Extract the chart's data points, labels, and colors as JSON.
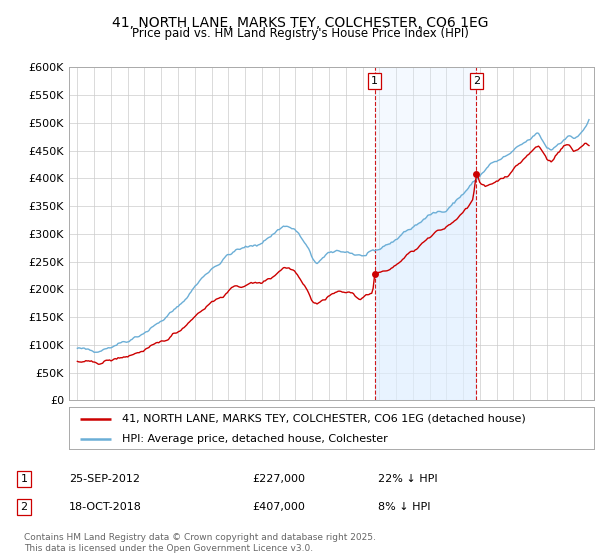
{
  "title": "41, NORTH LANE, MARKS TEY, COLCHESTER, CO6 1EG",
  "subtitle": "Price paid vs. HM Land Registry's House Price Index (HPI)",
  "hpi_color": "#6baed6",
  "hpi_fill_color": "#ddeeff",
  "price_color": "#cc0000",
  "vline_color": "#cc0000",
  "annotation_color": "#cc0000",
  "background_color": "#ffffff",
  "grid_color": "#cccccc",
  "ylim": [
    0,
    600000
  ],
  "yticks": [
    0,
    50000,
    100000,
    150000,
    200000,
    250000,
    300000,
    350000,
    400000,
    450000,
    500000,
    550000,
    600000
  ],
  "ytick_labels": [
    "£0",
    "£50K",
    "£100K",
    "£150K",
    "£200K",
    "£250K",
    "£300K",
    "£350K",
    "£400K",
    "£450K",
    "£500K",
    "£550K",
    "£600K"
  ],
  "sale1_date": 2012.73,
  "sale1_price": 227000,
  "sale2_date": 2018.79,
  "sale2_price": 407000,
  "legend_line1": "41, NORTH LANE, MARKS TEY, COLCHESTER, CO6 1EG (detached house)",
  "legend_line2": "HPI: Average price, detached house, Colchester",
  "footer": "Contains HM Land Registry data © Crown copyright and database right 2025.\nThis data is licensed under the Open Government Licence v3.0.",
  "xmin": 1994.5,
  "xmax": 2025.8
}
